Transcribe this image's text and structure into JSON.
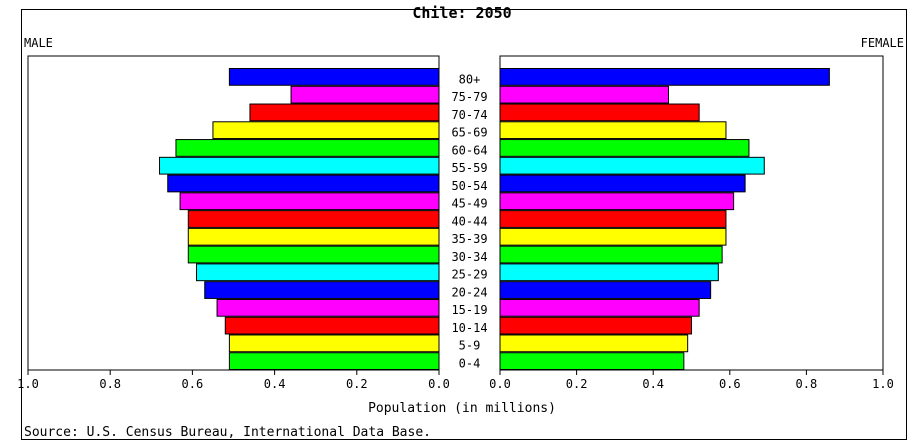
{
  "chart_data": {
    "type": "bar",
    "title": "Chile: 2050",
    "left_label": "MALE",
    "right_label": "FEMALE",
    "xlabel": "Population (in millions)",
    "source": "Source: U.S. Census Bureau, International Data Base.",
    "xlim": [
      0,
      1.0
    ],
    "xticks": [
      "1.0",
      "0.8",
      "0.6",
      "0.4",
      "0.2",
      "0.0",
      "0.0",
      "0.2",
      "0.4",
      "0.6",
      "0.8",
      "1.0"
    ],
    "categories": [
      "80+",
      "75-79",
      "70-74",
      "65-69",
      "60-64",
      "55-59",
      "50-54",
      "45-49",
      "40-44",
      "35-39",
      "30-34",
      "25-29",
      "20-24",
      "15-19",
      "10-14",
      "5-9",
      "0-4"
    ],
    "series": [
      {
        "name": "MALE",
        "values": [
          0.51,
          0.36,
          0.46,
          0.55,
          0.64,
          0.68,
          0.66,
          0.63,
          0.61,
          0.61,
          0.61,
          0.59,
          0.57,
          0.54,
          0.52,
          0.51,
          0.51
        ]
      },
      {
        "name": "FEMALE",
        "values": [
          0.86,
          0.44,
          0.52,
          0.59,
          0.65,
          0.69,
          0.64,
          0.61,
          0.59,
          0.59,
          0.58,
          0.57,
          0.55,
          0.52,
          0.5,
          0.49,
          0.48
        ]
      }
    ],
    "colors": [
      "#0000ff",
      "#ff00ff",
      "#ff0000",
      "#ffff00",
      "#00ff00",
      "#00ffff",
      "#0000ff",
      "#ff00ff",
      "#ff0000",
      "#ffff00",
      "#00ff00",
      "#00ffff",
      "#0000ff",
      "#ff00ff",
      "#ff0000",
      "#ffff00",
      "#00ff00"
    ]
  }
}
